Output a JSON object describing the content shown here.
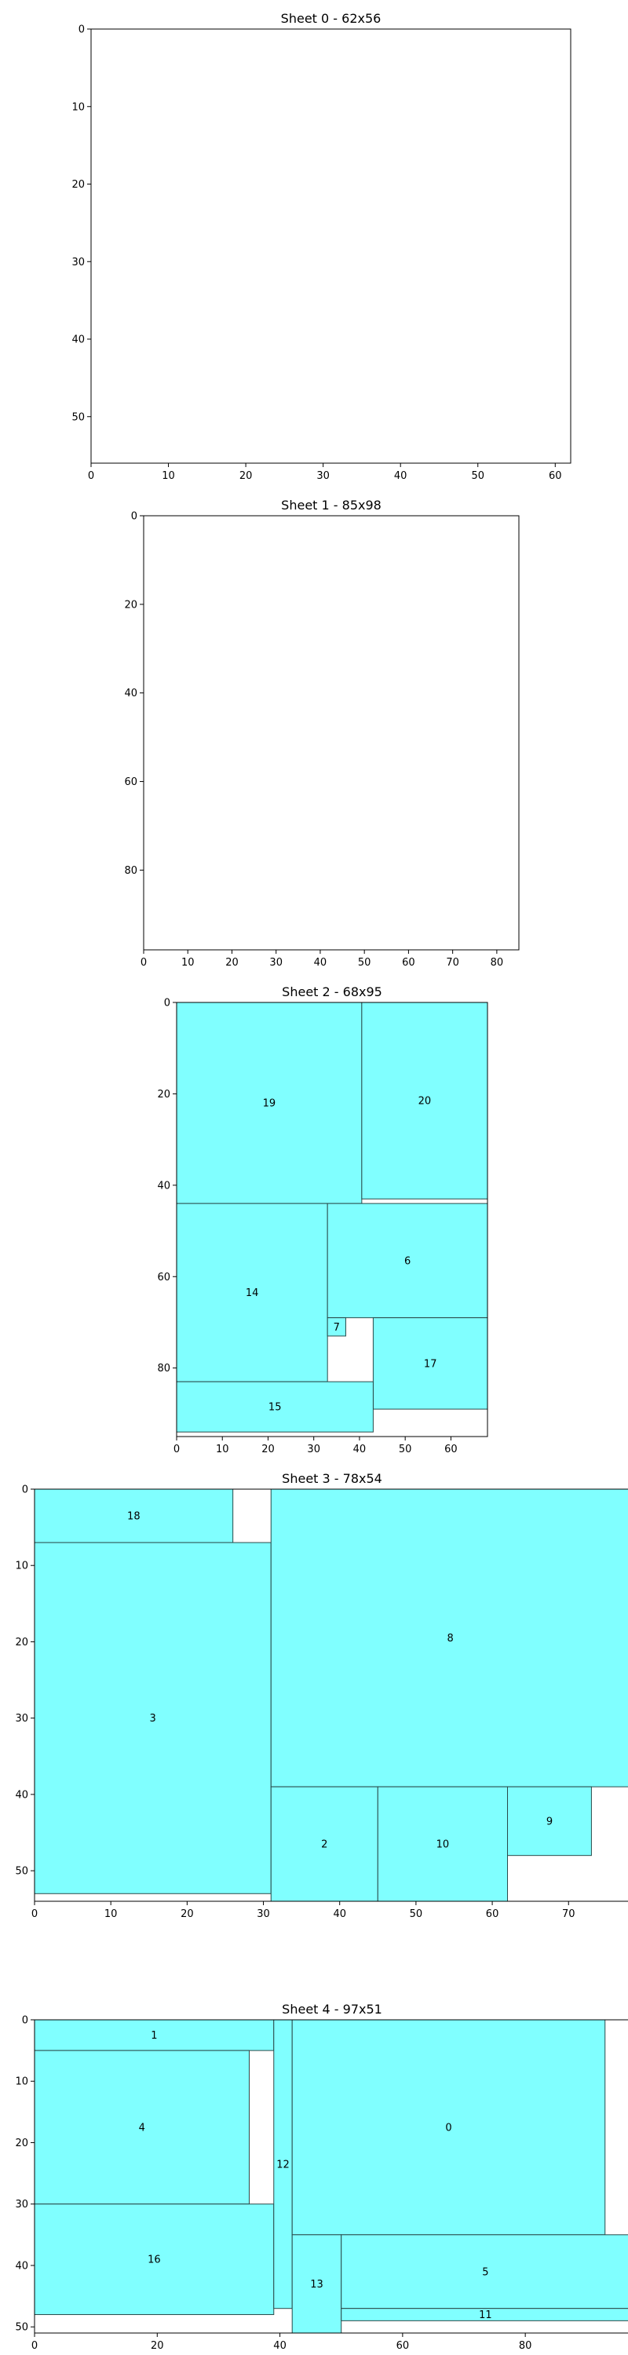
{
  "chart_data": [
    {
      "type": "sheet-layout",
      "title": "Sheet 0 - 62x56",
      "sheet": {
        "width": 62,
        "height": 56
      },
      "xticks": [
        0,
        10,
        20,
        30,
        40,
        50,
        60
      ],
      "yticks": [
        0,
        10,
        20,
        30,
        40,
        50
      ],
      "pieces": []
    },
    {
      "type": "sheet-layout",
      "title": "Sheet 1 - 85x98",
      "sheet": {
        "width": 85,
        "height": 98
      },
      "xticks": [
        0,
        10,
        20,
        30,
        40,
        50,
        60,
        70,
        80
      ],
      "yticks": [
        0,
        20,
        40,
        60,
        80
      ],
      "pieces": []
    },
    {
      "type": "sheet-layout",
      "title": "Sheet 2 - 68x95",
      "sheet": {
        "width": 68,
        "height": 95
      },
      "xticks": [
        0,
        10,
        20,
        30,
        40,
        50,
        60
      ],
      "yticks": [
        0,
        20,
        40,
        60,
        80
      ],
      "pieces": [
        {
          "id": "19",
          "x": 0,
          "y": 0,
          "w": 40.5,
          "h": 44
        },
        {
          "id": "20",
          "x": 40.5,
          "y": 0,
          "w": 27.5,
          "h": 43
        },
        {
          "id": "14",
          "x": 0,
          "y": 44,
          "w": 33,
          "h": 39
        },
        {
          "id": "6",
          "x": 33,
          "y": 44,
          "w": 35,
          "h": 25
        },
        {
          "id": "7",
          "x": 33,
          "y": 69,
          "w": 4,
          "h": 4
        },
        {
          "id": "17",
          "x": 43,
          "y": 69,
          "w": 25,
          "h": 20
        },
        {
          "id": "15",
          "x": 0,
          "y": 83,
          "w": 43,
          "h": 11
        }
      ]
    },
    {
      "type": "sheet-layout",
      "title": "Sheet 3 - 78x54",
      "sheet": {
        "width": 78,
        "height": 54
      },
      "xticks": [
        0,
        10,
        20,
        30,
        40,
        50,
        60,
        70
      ],
      "yticks": [
        0,
        10,
        20,
        30,
        40,
        50
      ],
      "pieces": [
        {
          "id": "18",
          "x": 0,
          "y": 0,
          "w": 26,
          "h": 7
        },
        {
          "id": "3",
          "x": 0,
          "y": 7,
          "w": 31,
          "h": 46
        },
        {
          "id": "8",
          "x": 31,
          "y": 0,
          "w": 47,
          "h": 39
        },
        {
          "id": "2",
          "x": 31,
          "y": 39,
          "w": 14,
          "h": 15
        },
        {
          "id": "10",
          "x": 45,
          "y": 39,
          "w": 17,
          "h": 15
        },
        {
          "id": "9",
          "x": 62,
          "y": 39,
          "w": 11,
          "h": 9
        }
      ]
    },
    {
      "type": "sheet-layout",
      "title": "Sheet 4 - 97x51",
      "sheet": {
        "width": 97,
        "height": 51
      },
      "xticks": [
        0,
        20,
        40,
        60,
        80
      ],
      "yticks": [
        0,
        10,
        20,
        30,
        40,
        50
      ],
      "pieces": [
        {
          "id": "1",
          "x": 0,
          "y": 0,
          "w": 39,
          "h": 5
        },
        {
          "id": "4",
          "x": 0,
          "y": 5,
          "w": 35,
          "h": 25
        },
        {
          "id": "16",
          "x": 0,
          "y": 30,
          "w": 39,
          "h": 18
        },
        {
          "id": "12",
          "x": 39,
          "y": 0,
          "w": 3,
          "h": 47
        },
        {
          "id": "0",
          "x": 42,
          "y": 0,
          "w": 51,
          "h": 35
        },
        {
          "id": "13",
          "x": 42,
          "y": 35,
          "w": 8,
          "h": 16
        },
        {
          "id": "5",
          "x": 50,
          "y": 35,
          "w": 47,
          "h": 12
        },
        {
          "id": "11",
          "x": 50,
          "y": 47,
          "w": 47,
          "h": 2
        }
      ]
    }
  ],
  "colors": {
    "piece_fill": "#80ffff",
    "piece_stroke": "#2a4a4a",
    "axis": "#000000"
  }
}
